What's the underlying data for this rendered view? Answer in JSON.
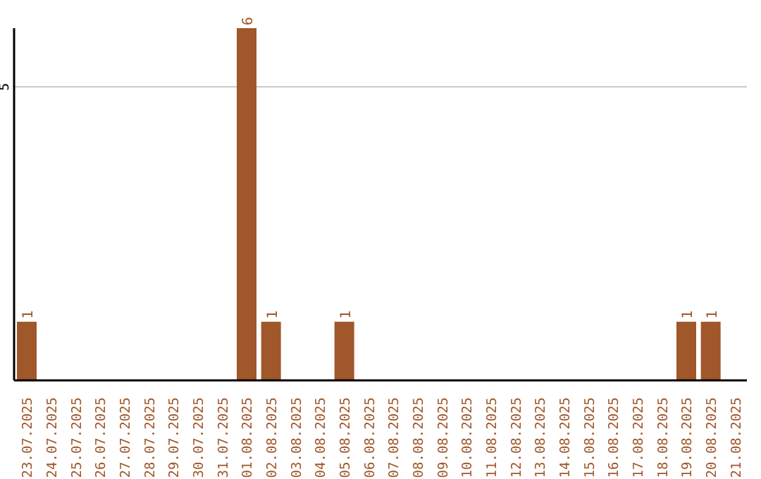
{
  "chart_data": {
    "type": "bar",
    "categories": [
      "23.07.2025",
      "24.07.2025",
      "25.07.2025",
      "26.07.2025",
      "27.07.2025",
      "28.07.2025",
      "29.07.2025",
      "30.07.2025",
      "31.07.2025",
      "01.08.2025",
      "02.08.2025",
      "03.08.2025",
      "04.08.2025",
      "05.08.2025",
      "06.08.2025",
      "07.08.2025",
      "08.08.2025",
      "09.08.2025",
      "10.08.2025",
      "11.08.2025",
      "12.08.2025",
      "13.08.2025",
      "14.08.2025",
      "15.08.2025",
      "16.08.2025",
      "17.08.2025",
      "18.08.2025",
      "19.08.2025",
      "20.08.2025",
      "21.08.2025"
    ],
    "values": [
      1,
      0,
      0,
      0,
      0,
      0,
      0,
      0,
      0,
      6,
      1,
      0,
      0,
      1,
      0,
      0,
      0,
      0,
      0,
      0,
      0,
      0,
      0,
      0,
      0,
      0,
      0,
      1,
      1,
      0
    ],
    "value_labels": [
      "1",
      null,
      null,
      null,
      null,
      null,
      null,
      null,
      null,
      "6",
      "1",
      null,
      null,
      "1",
      null,
      null,
      null,
      null,
      null,
      null,
      null,
      null,
      null,
      null,
      null,
      null,
      null,
      "1",
      "1",
      null
    ],
    "color": "#a0572a",
    "ylim": [
      0,
      6
    ],
    "yticks": [
      5
    ],
    "grid": "y"
  }
}
